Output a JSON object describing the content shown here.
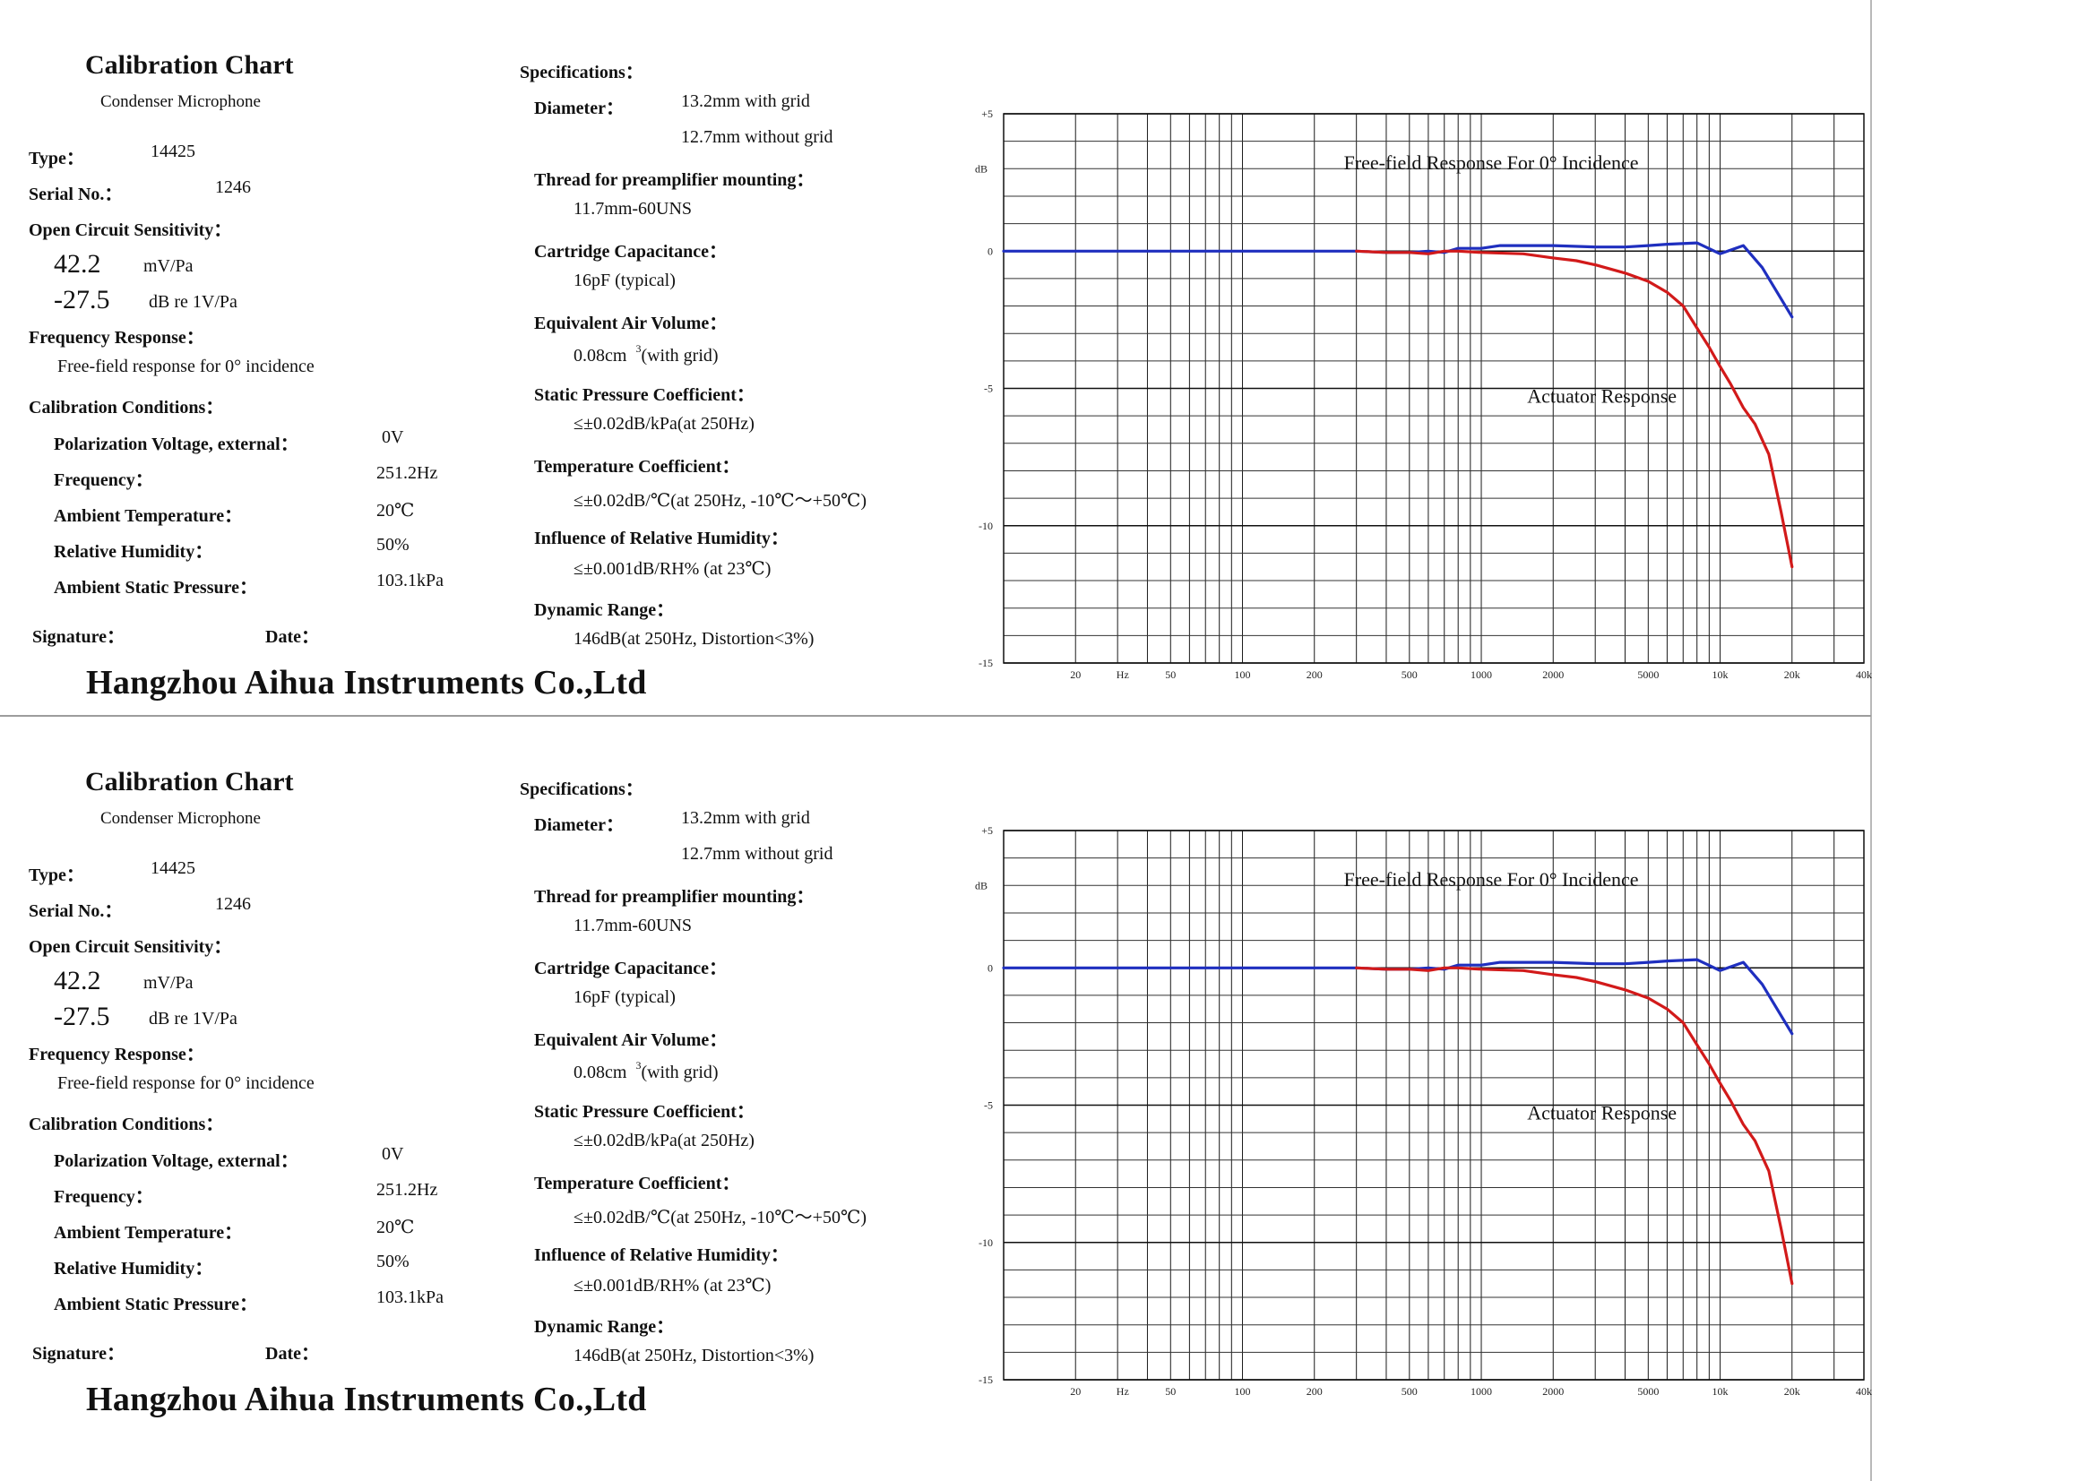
{
  "sheets": [
    {
      "title": "Calibration Chart",
      "subtitle": "Condenser Microphone",
      "type_label": "Type：",
      "type_value": "14425",
      "serial_label": "Serial No.：",
      "serial_value": "1246",
      "sensitivity_label": "Open Circuit Sensitivity：",
      "sensitivity_mv": "42.2",
      "sensitivity_mv_unit": "mV/Pa",
      "sensitivity_db": "-27.5",
      "sensitivity_db_unit": "dB re 1V/Pa",
      "freq_resp_label": "Frequency Response：",
      "freq_resp_value": "Free-field response for 0° incidence",
      "cal_cond_label": "Calibration Conditions：",
      "conditions": [
        {
          "label": "Polarization Voltage, external：",
          "value": "0V"
        },
        {
          "label": "Frequency：",
          "value": "251.2Hz"
        },
        {
          "label": "Ambient Temperature：",
          "value": "20℃"
        },
        {
          "label": "Relative Humidity：",
          "value": "50%"
        },
        {
          "label": "Ambient Static Pressure：",
          "value": "103.1kPa"
        }
      ],
      "signature_label": "Signature：",
      "date_label": "Date：",
      "company": "Hangzhou Aihua Instruments Co.,Ltd",
      "specs_label": "Specifications：",
      "diameter_label": "Diameter：",
      "diameter_1": "13.2mm with grid",
      "diameter_2": "12.7mm without grid",
      "thread_label": "Thread for preamplifier mounting：",
      "thread_value": "11.7mm-60UNS",
      "capacitance_label": "Cartridge Capacitance：",
      "capacitance_value": "16pF (typical)",
      "air_volume_label": "Equivalent Air Volume：",
      "air_volume_value": "0.08cm",
      "air_volume_sup": "3",
      "air_volume_tail": "(with grid)",
      "static_label": "Static Pressure Coefficient：",
      "static_value": "≤±0.02dB/kPa(at 250Hz)",
      "temp_label": "Temperature Coefficient：",
      "temp_value": "≤±0.02dB/℃(at 250Hz, -10℃～+50℃)",
      "humidity_label": "Influence of Relative Humidity：",
      "humidity_value": "≤±0.001dB/RH% (at 23℃)",
      "range_label": "Dynamic Range：",
      "range_value": "146dB(at 250Hz, Distortion<3%)"
    },
    {
      "title": "Calibration Chart",
      "subtitle": "Condenser Microphone",
      "type_label": "Type：",
      "type_value": "14425",
      "serial_label": "Serial No.：",
      "serial_value": "1246",
      "sensitivity_label": "Open Circuit Sensitivity：",
      "sensitivity_mv": "42.2",
      "sensitivity_mv_unit": "mV/Pa",
      "sensitivity_db": "-27.5",
      "sensitivity_db_unit": "dB re 1V/Pa",
      "freq_resp_label": "Frequency Response：",
      "freq_resp_value": "Free-field response for 0° incidence",
      "cal_cond_label": "Calibration Conditions：",
      "conditions": [
        {
          "label": "Polarization Voltage, external：",
          "value": "0V"
        },
        {
          "label": "Frequency：",
          "value": "251.2Hz"
        },
        {
          "label": "Ambient Temperature：",
          "value": "20℃"
        },
        {
          "label": "Relative Humidity：",
          "value": "50%"
        },
        {
          "label": "Ambient Static Pressure：",
          "value": "103.1kPa"
        }
      ],
      "signature_label": "Signature：",
      "date_label": "Date：",
      "company": "Hangzhou Aihua Instruments Co.,Ltd",
      "specs_label": "Specifications：",
      "diameter_label": "Diameter：",
      "diameter_1": "13.2mm with grid",
      "diameter_2": "12.7mm without grid",
      "thread_label": "Thread for preamplifier mounting：",
      "thread_value": "11.7mm-60UNS",
      "capacitance_label": "Cartridge Capacitance：",
      "capacitance_value": "16pF (typical)",
      "air_volume_label": "Equivalent Air Volume：",
      "air_volume_value": "0.08cm",
      "air_volume_sup": "3",
      "air_volume_tail": "(with grid)",
      "static_label": "Static Pressure Coefficient：",
      "static_value": "≤±0.02dB/kPa(at 250Hz)",
      "temp_label": "Temperature Coefficient：",
      "temp_value": "≤±0.02dB/℃(at 250Hz, -10℃～+50℃)",
      "humidity_label": "Influence of Relative Humidity：",
      "humidity_value": "≤±0.001dB/RH% (at 23℃)",
      "range_label": "Dynamic Range：",
      "range_value": "146dB(at 250Hz, Distortion<3%)"
    }
  ],
  "chart_data": [
    {
      "type": "line",
      "title": "",
      "xlabel": "Hz",
      "ylabel": "dB",
      "xscale": "log",
      "xlim": [
        10,
        40000
      ],
      "ylim": [
        -15,
        5
      ],
      "grid": true,
      "x_ticks": [
        20,
        50,
        100,
        200,
        500,
        1000,
        2000,
        5000,
        10000,
        20000,
        40000
      ],
      "x_tick_labels": [
        "20",
        "50",
        "100",
        "200",
        "500",
        "1000",
        "2000",
        "5000",
        "10k",
        "20k",
        "40k"
      ],
      "y_ticks": [
        5,
        0,
        -5,
        -10,
        -15
      ],
      "y_tick_labels": [
        "+5",
        "0",
        "-5",
        "-10",
        "-15"
      ],
      "annotations": [
        "Free-field Response For 0°  Incidence",
        "Actuator Response"
      ],
      "series": [
        {
          "name": "Free-field Response For 0°  Incidence",
          "color": "#1f2fbf",
          "x": [
            10,
            100,
            300,
            400,
            500,
            600,
            700,
            800,
            1000,
            1200,
            1500,
            2000,
            3000,
            4000,
            5000,
            6000,
            8000,
            10000,
            12500,
            15000,
            20000
          ],
          "y": [
            0,
            0,
            0,
            -0.05,
            -0.05,
            0,
            -0.05,
            0.1,
            0.1,
            0.2,
            0.2,
            0.2,
            0.15,
            0.15,
            0.2,
            0.25,
            0.3,
            -0.1,
            0.2,
            -0.6,
            -2.4
          ]
        },
        {
          "name": "Actuator Response",
          "color": "#d21a1a",
          "x": [
            300,
            400,
            500,
            600,
            700,
            800,
            1000,
            1500,
            2000,
            2500,
            3000,
            4000,
            5000,
            6000,
            7000,
            8000,
            9000,
            10000,
            11000,
            12500,
            14000,
            16000,
            18000,
            20000
          ],
          "y": [
            0,
            -0.05,
            -0.05,
            -0.1,
            0,
            0,
            -0.05,
            -0.1,
            -0.25,
            -0.35,
            -0.5,
            -0.8,
            -1.1,
            -1.5,
            -2.0,
            -2.8,
            -3.5,
            -4.2,
            -4.8,
            -5.7,
            -6.3,
            -7.4,
            -9.5,
            -11.5
          ]
        }
      ]
    },
    {
      "type": "line",
      "title": "",
      "xlabel": "Hz",
      "ylabel": "dB",
      "xscale": "log",
      "xlim": [
        10,
        40000
      ],
      "ylim": [
        -15,
        5
      ],
      "grid": true,
      "x_ticks": [
        20,
        50,
        100,
        200,
        500,
        1000,
        2000,
        5000,
        10000,
        20000,
        40000
      ],
      "x_tick_labels": [
        "20",
        "50",
        "100",
        "200",
        "500",
        "1000",
        "2000",
        "5000",
        "10k",
        "20k",
        "40k"
      ],
      "y_ticks": [
        5,
        0,
        -5,
        -10,
        -15
      ],
      "y_tick_labels": [
        "+5",
        "0",
        "-5",
        "-10",
        "-15"
      ],
      "annotations": [
        "Free-field Response For 0°  Incidence",
        "Actuator Response"
      ],
      "series": [
        {
          "name": "Free-field Response For 0°  Incidence",
          "color": "#1f2fbf",
          "x": [
            10,
            100,
            300,
            400,
            500,
            600,
            700,
            800,
            1000,
            1200,
            1500,
            2000,
            3000,
            4000,
            5000,
            6000,
            8000,
            10000,
            12500,
            15000,
            20000
          ],
          "y": [
            0,
            0,
            0,
            -0.05,
            -0.05,
            0,
            -0.05,
            0.1,
            0.1,
            0.2,
            0.2,
            0.2,
            0.15,
            0.15,
            0.2,
            0.25,
            0.3,
            -0.1,
            0.2,
            -0.6,
            -2.4
          ]
        },
        {
          "name": "Actuator Response",
          "color": "#d21a1a",
          "x": [
            300,
            400,
            500,
            600,
            700,
            800,
            1000,
            1500,
            2000,
            2500,
            3000,
            4000,
            5000,
            6000,
            7000,
            8000,
            9000,
            10000,
            11000,
            12500,
            14000,
            16000,
            18000,
            20000
          ],
          "y": [
            0,
            -0.05,
            -0.05,
            -0.1,
            0,
            0,
            -0.05,
            -0.1,
            -0.25,
            -0.35,
            -0.5,
            -0.8,
            -1.1,
            -1.5,
            -2.0,
            -2.8,
            -3.5,
            -4.2,
            -4.8,
            -5.7,
            -6.3,
            -7.4,
            -9.5,
            -11.5
          ]
        }
      ]
    }
  ]
}
